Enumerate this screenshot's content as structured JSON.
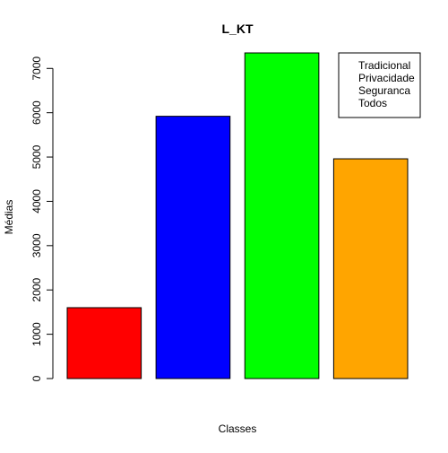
{
  "chart_data": {
    "type": "bar",
    "title": "L_KT",
    "xlabel": "Classes",
    "ylabel": "Médias",
    "categories": [
      "Tradicional",
      "Privacidade",
      "Seguranca",
      "Todos"
    ],
    "values": [
      1600,
      5920,
      7350,
      4960
    ],
    "colors": [
      "#ff0000",
      "#0000ff",
      "#00ff00",
      "#ffa500"
    ],
    "yticks": [
      0,
      1000,
      2000,
      3000,
      4000,
      5000,
      6000,
      7000
    ],
    "ytick_labels": [
      "0",
      "1000",
      "2000",
      "3000",
      "4000",
      "5000",
      "6000",
      "7000"
    ],
    "ylim": [
      0,
      7350
    ],
    "grid": false,
    "legend": {
      "position": "top-right",
      "entries": [
        "Tradicional",
        "Privacidade",
        "Seguranca",
        "Todos"
      ]
    }
  }
}
